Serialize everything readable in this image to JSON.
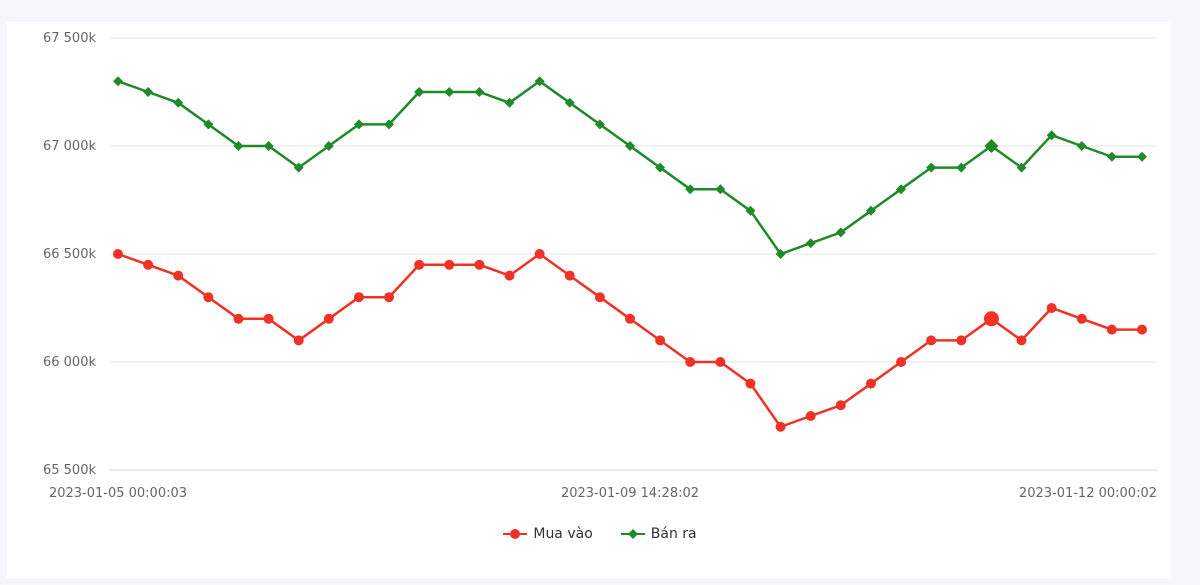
{
  "chart_data": {
    "type": "line",
    "x_tick_labels": [
      "2023-01-05 00:00:03",
      "2023-01-09 14:28:02",
      "2023-01-12 00:00:02"
    ],
    "y_tick_labels": [
      "67 500k",
      "67 000k",
      "66 500k",
      "66 000k",
      "65 500k"
    ],
    "y_ticks": [
      67500,
      67000,
      66500,
      66000,
      65500
    ],
    "ylim": [
      65500,
      67500
    ],
    "point_count": 35,
    "grid": "horizontal",
    "legend_position": "bottom",
    "highlighted_index": 29,
    "series": [
      {
        "name": "Mua vào",
        "color": "#f03226",
        "marker": "circle",
        "values": [
          66500,
          66450,
          66400,
          66300,
          66200,
          66200,
          66100,
          66200,
          66300,
          66300,
          66450,
          66450,
          66450,
          66400,
          66500,
          66400,
          66300,
          66200,
          66100,
          66000,
          66000,
          65900,
          65700,
          65750,
          65800,
          65900,
          66000,
          66100,
          66100,
          66200,
          66100,
          66250,
          66200,
          66150,
          66150
        ]
      },
      {
        "name": "Bán ra",
        "color": "#1e8a28",
        "marker": "diamond",
        "values": [
          67300,
          67250,
          67200,
          67100,
          67000,
          67000,
          66900,
          67000,
          67100,
          67100,
          67250,
          67250,
          67250,
          67200,
          67300,
          67200,
          67100,
          67000,
          66900,
          66800,
          66800,
          66700,
          66500,
          66550,
          66600,
          66700,
          66800,
          66900,
          66900,
          67000,
          66900,
          67050,
          67000,
          66950,
          66950
        ]
      }
    ]
  }
}
